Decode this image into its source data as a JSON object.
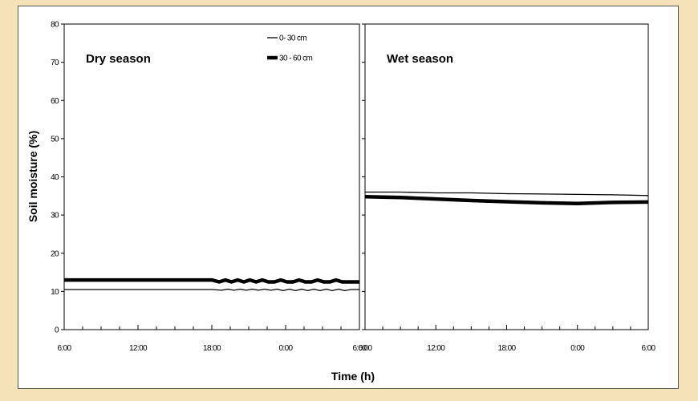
{
  "chart_data": {
    "type": "line",
    "ylabel": "Soil moisture (%)",
    "xlabel": "Time (h)",
    "ylim": [
      0,
      80
    ],
    "yticks": [
      0,
      10,
      20,
      30,
      40,
      50,
      60,
      70,
      80
    ],
    "grid": false,
    "legend": {
      "placement": "top-right of left panel",
      "entries": [
        "0- 30 cm",
        "30 - 60 cm"
      ]
    },
    "panels": [
      {
        "title": "Dry season",
        "xticks": [
          "6:00",
          "12:00",
          "18:00",
          "0:00",
          "6:00"
        ],
        "series": [
          {
            "name": "0- 30 cm",
            "x": [
              0,
              3,
              6,
              9,
              12,
              12.8,
              13.3,
              13.8,
              14.3,
              14.8,
              15.3,
              15.8,
              16.3,
              16.8,
              17.3,
              17.8,
              18.3,
              18.8,
              19.3,
              19.8,
              20.3,
              20.8,
              21.3,
              21.8,
              22.3,
              22.8,
              23.3,
              24
            ],
            "y": [
              10.5,
              10.5,
              10.5,
              10.5,
              10.5,
              10.3,
              10.6,
              10.3,
              10.6,
              10.3,
              10.6,
              10.3,
              10.6,
              10.3,
              10.6,
              10.2,
              10.6,
              10.2,
              10.6,
              10.2,
              10.6,
              10.2,
              10.6,
              10.2,
              10.6,
              10.2,
              10.5,
              10.5
            ]
          },
          {
            "name": "30 - 60 cm",
            "x": [
              0,
              3,
              6,
              9,
              12,
              12.6,
              13.1,
              13.6,
              14.1,
              14.6,
              15.1,
              15.6,
              16.1,
              16.6,
              17.1,
              17.6,
              18.1,
              18.6,
              19.1,
              19.6,
              20.1,
              20.6,
              21.1,
              21.6,
              22.1,
              22.6,
              23.1,
              24
            ],
            "y": [
              13.0,
              13.0,
              13.0,
              13.0,
              13.0,
              12.5,
              13.0,
              12.5,
              13.0,
              12.5,
              13.0,
              12.5,
              13.0,
              12.5,
              12.5,
              13.0,
              12.5,
              12.5,
              13.0,
              12.5,
              12.5,
              13.0,
              12.5,
              12.5,
              13.0,
              12.5,
              12.5,
              12.5
            ]
          }
        ]
      },
      {
        "title": "Wet season",
        "xticks": [
          "6:00",
          "12:00",
          "18:00",
          "0:00",
          "6:00"
        ],
        "series": [
          {
            "name": "0- 30 cm",
            "x": [
              0,
              3,
              6,
              9,
              12,
              15,
              18,
              21,
              24
            ],
            "y": [
              36.0,
              36.0,
              35.8,
              35.8,
              35.6,
              35.5,
              35.4,
              35.3,
              35.1
            ]
          },
          {
            "name": "30 - 60 cm",
            "x": [
              0,
              3,
              6,
              9,
              12,
              15,
              18,
              21,
              24
            ],
            "y": [
              34.8,
              34.6,
              34.2,
              33.8,
              33.5,
              33.2,
              33.0,
              33.3,
              33.4
            ]
          }
        ]
      }
    ]
  },
  "colors": {
    "background": "#f6e2b8",
    "plot_background": "#ffffff",
    "line": "#000000"
  }
}
